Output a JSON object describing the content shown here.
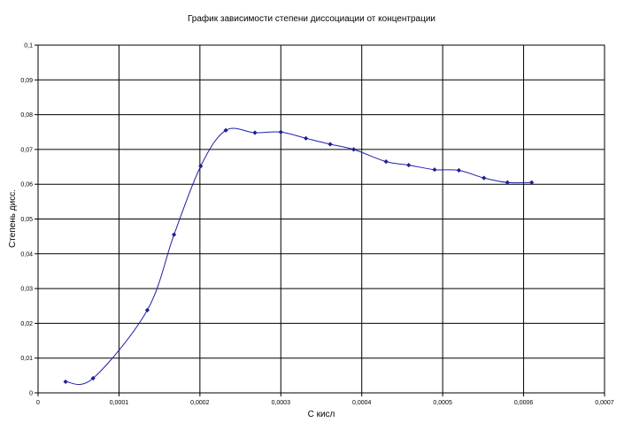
{
  "chart_data": {
    "type": "scatter",
    "title": "График зависимости степени диссоциации от концентрации",
    "xlabel": "C кисл",
    "ylabel": "Степень дисс.",
    "xlim": [
      0,
      0.0007
    ],
    "ylim": [
      0,
      0.1
    ],
    "x_ticks": [
      "0",
      "0,0001",
      "0,0002",
      "0,0003",
      "0,0004",
      "0,0005",
      "0,0006",
      "0,0007"
    ],
    "y_ticks": [
      "0",
      "0,01",
      "0,02",
      "0,03",
      "0,04",
      "0,05",
      "0,06",
      "0,07",
      "0,08",
      "0,09",
      "0,1"
    ],
    "grid": true,
    "legend": "none",
    "smoothed": true,
    "line_color": "#1f1fa8",
    "marker_color": "#1f1f8f",
    "series": [
      {
        "x": [
          3.4e-05,
          6.8e-05,
          0.000135,
          0.000168,
          0.000201,
          0.000232,
          0.000268,
          0.0003,
          0.000331,
          0.000361,
          0.00039,
          0.00043,
          0.000458,
          0.00049,
          0.00052,
          0.000551,
          0.00058,
          0.00061
        ],
        "y": [
          0.0032,
          0.0042,
          0.0238,
          0.0455,
          0.0652,
          0.0755,
          0.0748,
          0.075,
          0.0732,
          0.0715,
          0.07,
          0.0665,
          0.0655,
          0.0642,
          0.064,
          0.0618,
          0.0605,
          0.0605
        ]
      }
    ]
  }
}
